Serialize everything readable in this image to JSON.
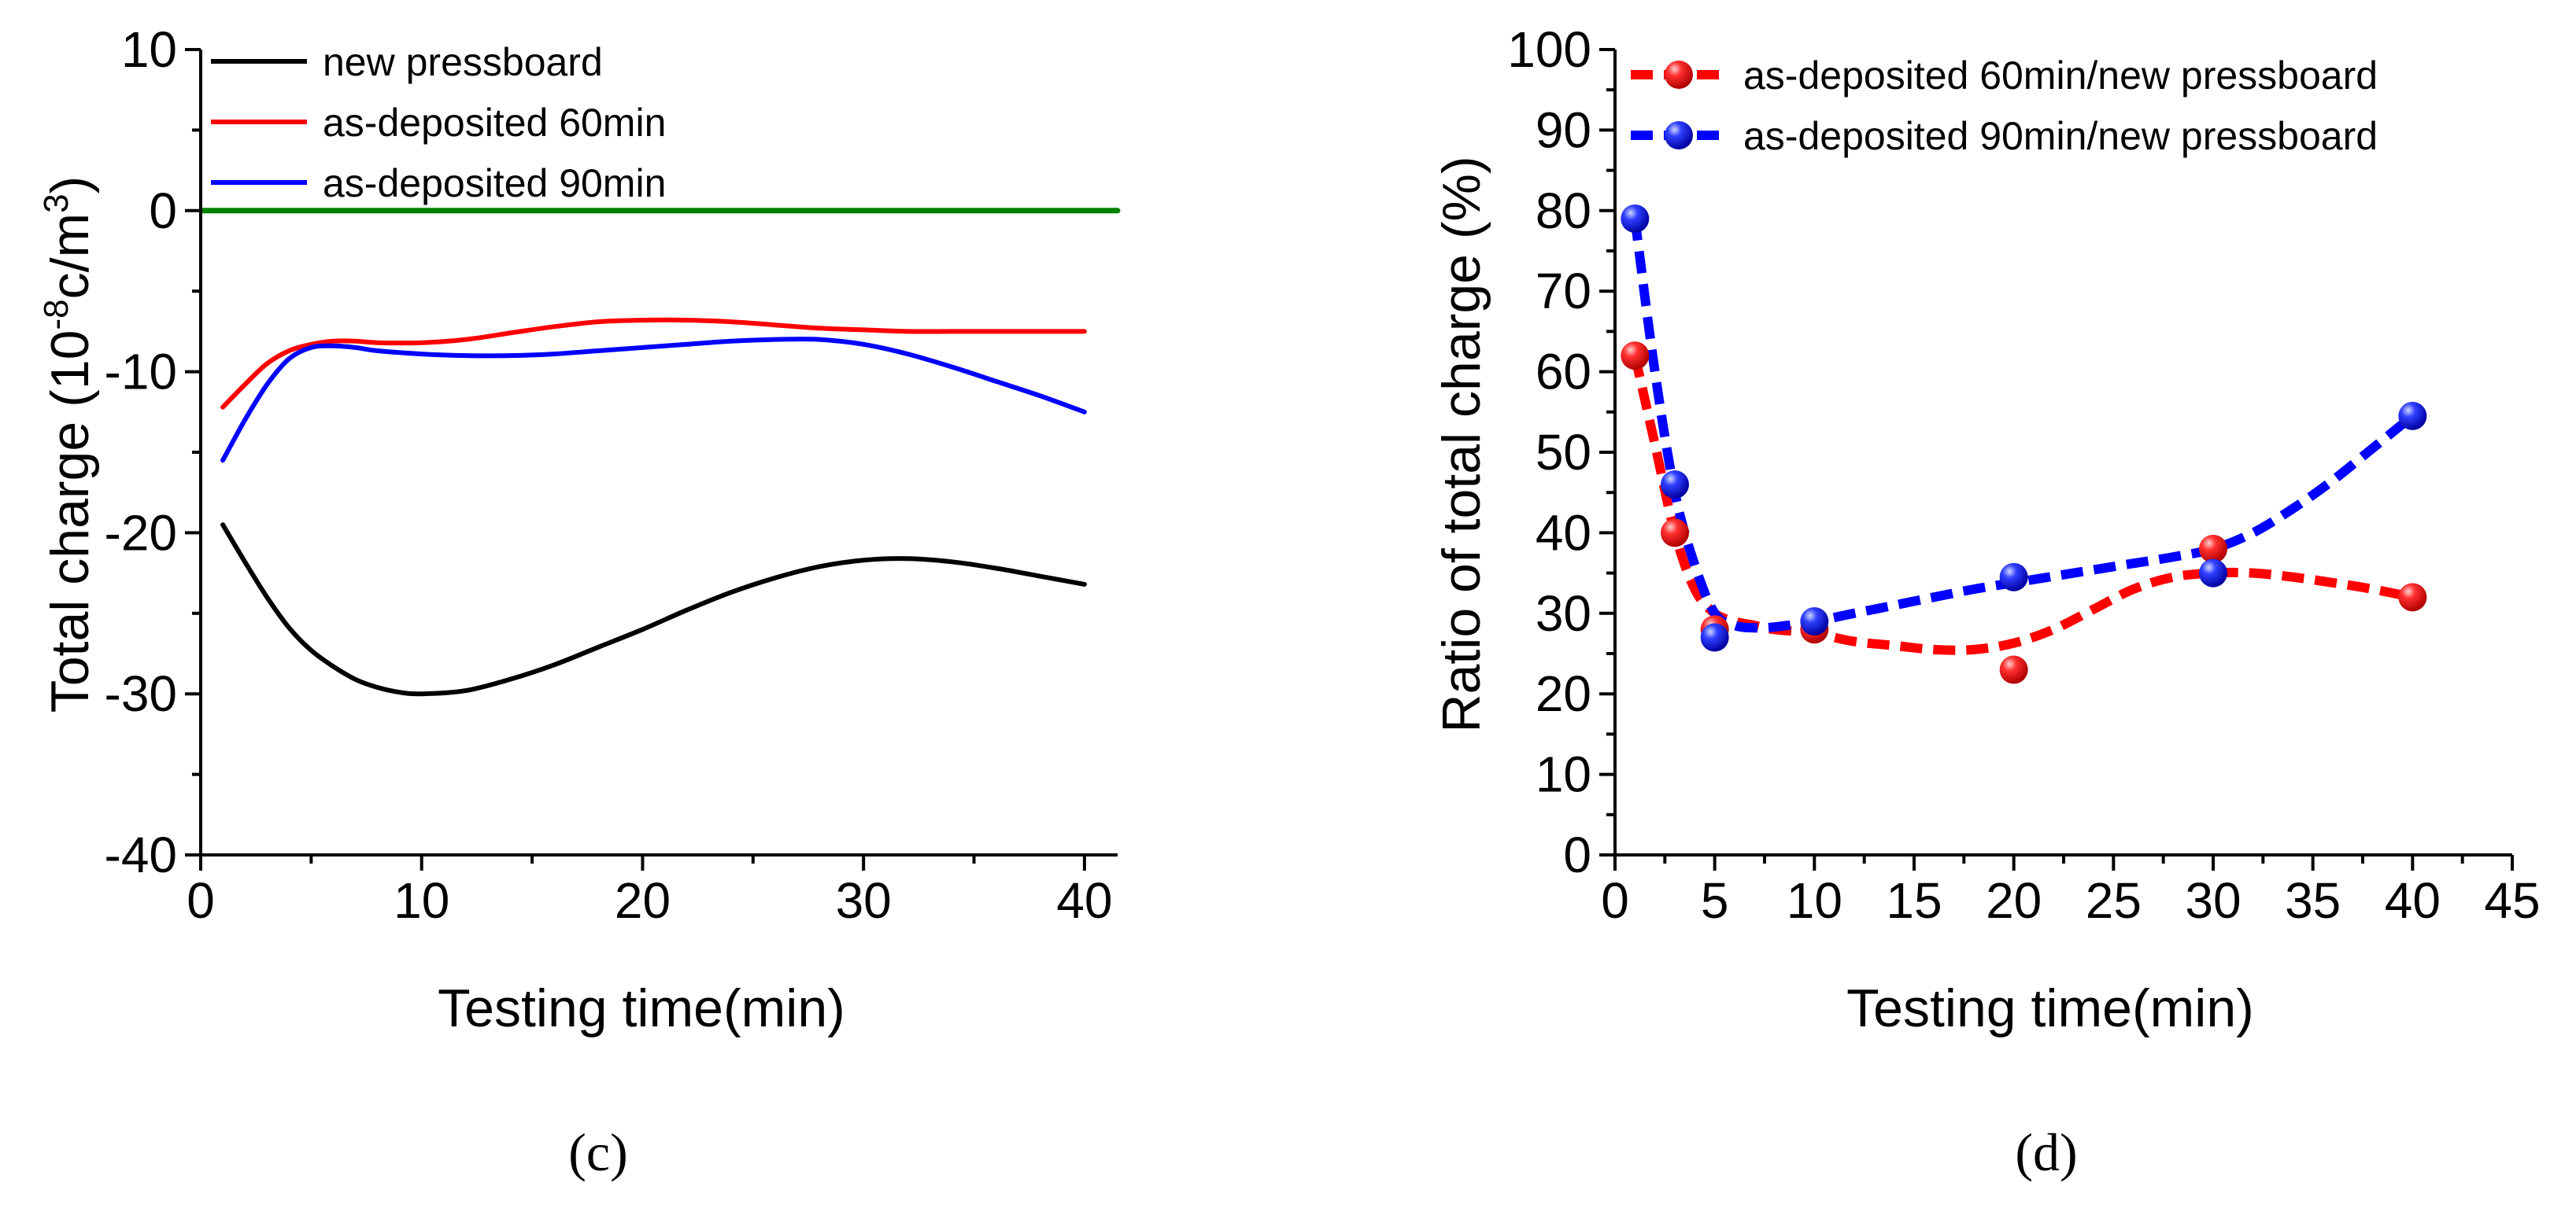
{
  "chart_data": [
    {
      "panel": "c",
      "panel_label": "(c)",
      "type": "line",
      "title": "",
      "xlabel": "Testing time(min)",
      "ylabel_main": "Total charge",
      "ylabel_unit_prefix": "(10",
      "ylabel_unit_exp": "-8",
      "ylabel_unit_mid": "c/m",
      "ylabel_unit_exp2": "3",
      "ylabel_unit_suffix": ")",
      "xlim": [
        0,
        41.5
      ],
      "ylim": [
        -40,
        10
      ],
      "xticks": [
        0,
        10,
        20,
        30,
        40
      ],
      "yticks": [
        -40,
        -30,
        -20,
        -10,
        0,
        10
      ],
      "xtick_labels": [
        "0",
        "10",
        "20",
        "30",
        "40"
      ],
      "ytick_labels": [
        "-40",
        "-30",
        "-20",
        "-10",
        "0",
        "10"
      ],
      "legend_position": "top-left",
      "series": [
        {
          "name": "new pressboard",
          "color": "#000000",
          "in_legend": true,
          "x": [
            1,
            2,
            3,
            4,
            5,
            6,
            7,
            8,
            9,
            10,
            12,
            14,
            16,
            18,
            20,
            22,
            24,
            26,
            28,
            30,
            32,
            34,
            36,
            38,
            40
          ],
          "y": [
            -19.5,
            -21.8,
            -24.0,
            -25.9,
            -27.3,
            -28.3,
            -29.1,
            -29.6,
            -29.9,
            -30.0,
            -29.8,
            -29.1,
            -28.2,
            -27.1,
            -26.0,
            -24.8,
            -23.7,
            -22.8,
            -22.1,
            -21.7,
            -21.6,
            -21.8,
            -22.2,
            -22.7,
            -23.2
          ]
        },
        {
          "name": "as-deposited 60min",
          "color": "#ff0000",
          "in_legend": true,
          "x": [
            1,
            2,
            3,
            4,
            5,
            6,
            7,
            8,
            10,
            12,
            14,
            16,
            18,
            20,
            22,
            24,
            26,
            28,
            30,
            32,
            34,
            36,
            38,
            40
          ],
          "y": [
            -12.2,
            -10.8,
            -9.5,
            -8.7,
            -8.3,
            -8.1,
            -8.1,
            -8.2,
            -8.2,
            -8.0,
            -7.6,
            -7.2,
            -6.9,
            -6.8,
            -6.8,
            -6.9,
            -7.1,
            -7.3,
            -7.4,
            -7.5,
            -7.5,
            -7.5,
            -7.5,
            -7.5
          ]
        },
        {
          "name": "as-deposited 90min",
          "color": "#0000ff",
          "in_legend": true,
          "x": [
            1,
            2,
            3,
            4,
            5,
            6,
            7,
            8,
            10,
            12,
            14,
            16,
            18,
            20,
            22,
            24,
            26,
            28,
            30,
            32,
            34,
            36,
            38,
            40
          ],
          "y": [
            -15.5,
            -13.0,
            -10.8,
            -9.2,
            -8.5,
            -8.4,
            -8.5,
            -8.7,
            -8.9,
            -9.0,
            -9.0,
            -8.9,
            -8.7,
            -8.5,
            -8.3,
            -8.1,
            -8.0,
            -8.0,
            -8.3,
            -8.9,
            -9.7,
            -10.6,
            -11.5,
            -12.5
          ]
        },
        {
          "name": "zero baseline",
          "color": "#008000",
          "in_legend": false,
          "x": [
            0,
            41.5
          ],
          "y": [
            0,
            0
          ]
        }
      ]
    },
    {
      "panel": "d",
      "panel_label": "(d)",
      "type": "scatter",
      "title": "",
      "xlabel": "Testing time(min)",
      "ylabel": "Ratio of total charge (%)",
      "xlim": [
        0,
        45
      ],
      "ylim": [
        0,
        100
      ],
      "xticks": [
        0,
        5,
        10,
        15,
        20,
        25,
        30,
        35,
        40,
        45
      ],
      "yticks": [
        0,
        10,
        20,
        30,
        40,
        50,
        60,
        70,
        80,
        90,
        100
      ],
      "xtick_labels": [
        "0",
        "5",
        "10",
        "15",
        "20",
        "25",
        "30",
        "35",
        "40",
        "45"
      ],
      "ytick_labels": [
        "0",
        "10",
        "20",
        "30",
        "40",
        "50",
        "60",
        "70",
        "80",
        "90",
        "100"
      ],
      "legend_position": "top",
      "series": [
        {
          "name": "as-deposited 60min/new pressboard",
          "color": "#ff0000",
          "line_style": "dashed",
          "x": [
            1,
            3,
            5,
            10,
            20,
            30,
            40
          ],
          "y": [
            62,
            40,
            28,
            28,
            23,
            38,
            32
          ],
          "fit_x": [
            1,
            2,
            3,
            4,
            5,
            6,
            7,
            8,
            10,
            12,
            14,
            16,
            18,
            20,
            22,
            24,
            26,
            28,
            30,
            32,
            34,
            36,
            38,
            40
          ],
          "fit_y": [
            62,
            51,
            40,
            33,
            30,
            29,
            28.5,
            28,
            27.5,
            26.5,
            26,
            25.5,
            25.5,
            26.3,
            28,
            30.5,
            33,
            34.5,
            35,
            35,
            34.5,
            33.8,
            33,
            32
          ]
        },
        {
          "name": "as-deposited 90min/new pressboard",
          "color": "#0000ff",
          "line_style": "dashed",
          "x": [
            1,
            3,
            5,
            10,
            20,
            30,
            40
          ],
          "y": [
            79,
            46,
            27,
            29,
            34.5,
            35,
            54.5
          ],
          "fit_x": [
            1,
            2,
            3,
            4,
            5,
            6,
            7,
            8,
            10,
            12,
            14,
            16,
            18,
            20,
            22,
            24,
            26,
            28,
            30,
            32,
            34,
            36,
            38,
            40
          ],
          "fit_y": [
            79,
            60,
            45,
            36,
            30,
            28.5,
            28.2,
            28.3,
            29,
            30,
            31,
            32,
            33,
            33.8,
            34.6,
            35.4,
            36.2,
            37,
            38,
            40,
            43,
            46.5,
            50.5,
            54.5
          ]
        }
      ]
    }
  ]
}
